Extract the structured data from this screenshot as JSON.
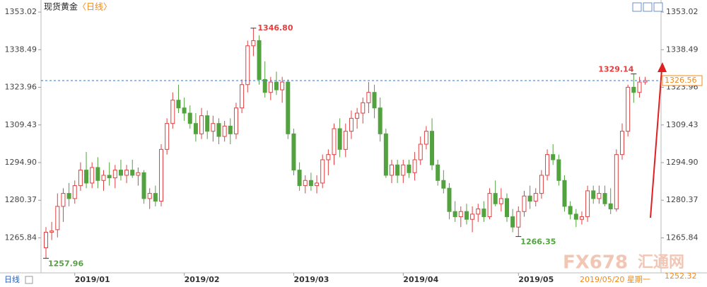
{
  "chart_data": {
    "type": "candlestick",
    "title": "现货黄金",
    "subtitle": "〈日线〉",
    "period_selector": "日线",
    "cursor_date": "2019/05/20 星期一",
    "cursor_price": {
      "value": 1252.32,
      "label": "1252.32"
    },
    "watermark": "FX678",
    "watermark_cn": "汇通网",
    "up_color": "#e04040",
    "down_color": "#52a23f",
    "categories": [
      null,
      null,
      null,
      null,
      null,
      "2019/01",
      null,
      null,
      null,
      null,
      null,
      null,
      null,
      null,
      null,
      null,
      null,
      null,
      null,
      null,
      null,
      null,
      null,
      null,
      "2019/02",
      null,
      null,
      null,
      null,
      null,
      null,
      null,
      null,
      null,
      null,
      null,
      null,
      null,
      null,
      null,
      null,
      null,
      null,
      "2019/03",
      null,
      null,
      null,
      null,
      null,
      null,
      null,
      null,
      null,
      null,
      null,
      null,
      null,
      null,
      null,
      null,
      null,
      null,
      "2019/04",
      null,
      null,
      null,
      null,
      null,
      null,
      null,
      null,
      null,
      null,
      null,
      null,
      null,
      null,
      null,
      null,
      null,
      null,
      null,
      "2019/05",
      null,
      null,
      null,
      null,
      null,
      null,
      null,
      null,
      null,
      null,
      null,
      null,
      null,
      null,
      null,
      null,
      null,
      null,
      null,
      null,
      null,
      null
    ],
    "open": [
      1262,
      1268,
      1269,
      1278,
      1283,
      1281,
      1286,
      1292,
      1287,
      1293,
      1288,
      1290,
      1289,
      1292,
      1290,
      1292,
      1290,
      1291,
      1281,
      1283,
      1280,
      1300,
      1310,
      1319,
      1316,
      1314,
      1310,
      1306,
      1313,
      1307,
      1310,
      1305,
      1309,
      1306,
      1316,
      1325,
      1340,
      1342,
      1327,
      1322,
      1326,
      1323,
      1326,
      1306,
      1292,
      1286,
      1288,
      1286,
      1287,
      1296,
      1298,
      1308,
      1300,
      1307,
      1312,
      1314,
      1318,
      1322,
      1316,
      1306,
      1290,
      1294,
      1290,
      1294,
      1291,
      1296,
      1302,
      1307,
      1294,
      1288,
      1285,
      1276,
      1274,
      1276,
      1273,
      1275,
      1277,
      1274,
      1283,
      1279,
      1281,
      1274,
      1270,
      1276,
      1282,
      1280,
      1283,
      1290,
      1298,
      1296,
      1288,
      1278,
      1275,
      1273,
      1274,
      1284,
      1281,
      1283,
      1279,
      1277,
      1298,
      1307,
      1324,
      1322,
      1326
    ],
    "high": [
      1270,
      1272,
      1283,
      1285,
      1287,
      1288,
      1295,
      1299,
      1295,
      1297,
      1292,
      1295,
      1294,
      1296,
      1294,
      1296,
      1293,
      1292,
      1285,
      1286,
      1302,
      1312,
      1322,
      1325,
      1320,
      1317,
      1314,
      1316,
      1315,
      1313,
      1312,
      1311,
      1312,
      1318,
      1327,
      1342,
      1346.8,
      1344,
      1334,
      1328,
      1330,
      1328,
      1327,
      1308,
      1295,
      1290,
      1291,
      1290,
      1298,
      1300,
      1310,
      1312,
      1310,
      1315,
      1316,
      1320,
      1326,
      1325,
      1320,
      1308,
      1296,
      1296,
      1296,
      1296,
      1299,
      1305,
      1309,
      1312,
      1296,
      1292,
      1287,
      1280,
      1278,
      1279,
      1278,
      1279,
      1280,
      1285,
      1288,
      1285,
      1283,
      1277,
      1278,
      1284,
      1286,
      1285,
      1292,
      1300,
      1302,
      1298,
      1290,
      1280,
      1277,
      1276,
      1286,
      1286,
      1286,
      1286,
      1285,
      1300,
      1310,
      1325,
      1329.14,
      1328,
      1328
    ],
    "low": [
      1257.96,
      1265,
      1266,
      1272,
      1278,
      1279,
      1284,
      1285,
      1285,
      1285,
      1284,
      1286,
      1285,
      1288,
      1287,
      1289,
      1286,
      1279,
      1277,
      1278,
      1278,
      1298,
      1308,
      1314,
      1311,
      1308,
      1303,
      1304,
      1304,
      1303,
      1302,
      1303,
      1302,
      1304,
      1314,
      1322,
      1336,
      1325,
      1320,
      1319,
      1321,
      1318,
      1304,
      1290,
      1284,
      1283,
      1284,
      1283,
      1285,
      1290,
      1294,
      1297,
      1297,
      1304,
      1308,
      1310,
      1314,
      1312,
      1303,
      1289,
      1287,
      1287,
      1287,
      1289,
      1288,
      1294,
      1300,
      1292,
      1286,
      1283,
      1273,
      1272,
      1270,
      1271,
      1268,
      1272,
      1272,
      1273,
      1278,
      1276,
      1272,
      1268,
      1266.35,
      1274,
      1277,
      1278,
      1281,
      1288,
      1294,
      1286,
      1276,
      1273,
      1270,
      1271,
      1272,
      1279,
      1279,
      1278,
      1275,
      1276,
      1296,
      1305,
      1318,
      1320,
      1325
    ],
    "close": [
      1268,
      1268.5,
      1278,
      1283,
      1281,
      1286,
      1292,
      1287,
      1293,
      1288,
      1290,
      1289,
      1292,
      1290,
      1292,
      1290,
      1291,
      1281,
      1283,
      1280,
      1300,
      1310,
      1319,
      1316,
      1314,
      1310,
      1306,
      1313,
      1307,
      1310,
      1305,
      1309,
      1306,
      1316,
      1325,
      1340,
      1342,
      1327,
      1322,
      1326,
      1323,
      1326,
      1306,
      1292,
      1286,
      1288,
      1286,
      1287,
      1296,
      1298,
      1308,
      1300,
      1307,
      1312,
      1314,
      1318,
      1322,
      1316,
      1306,
      1290,
      1294,
      1290,
      1294,
      1291,
      1296,
      1302,
      1307,
      1294,
      1288,
      1285,
      1276,
      1274,
      1276,
      1273,
      1275,
      1277,
      1274,
      1283,
      1279,
      1281,
      1274,
      1270,
      1276,
      1282,
      1280,
      1283,
      1290,
      1298,
      1296,
      1288,
      1278,
      1275,
      1273,
      1274,
      1284,
      1281,
      1283,
      1279,
      1277,
      1298,
      1307,
      1324,
      1322,
      1326,
      1326.56
    ],
    "high_labels": [
      null,
      null,
      null,
      null,
      null,
      null,
      null,
      null,
      null,
      null,
      null,
      null,
      null,
      null,
      null,
      null,
      null,
      null,
      null,
      null,
      null,
      null,
      null,
      null,
      null,
      null,
      null,
      null,
      null,
      null,
      null,
      null,
      null,
      null,
      null,
      null,
      "1346.80",
      null,
      null,
      null,
      null,
      null,
      null,
      null,
      null,
      null,
      null,
      null,
      null,
      null,
      null,
      null,
      null,
      null,
      null,
      null,
      null,
      null,
      null,
      null,
      null,
      null,
      null,
      null,
      null,
      null,
      null,
      null,
      null,
      null,
      null,
      null,
      null,
      null,
      null,
      null,
      null,
      null,
      null,
      null,
      null,
      null,
      null,
      null,
      null,
      null,
      null,
      null,
      null,
      null,
      null,
      null,
      null,
      null,
      null,
      null,
      null,
      null,
      null,
      null,
      null,
      null,
      "1329.14",
      null,
      null
    ],
    "low_labels": [
      "1257.96",
      null,
      null,
      null,
      null,
      null,
      null,
      null,
      null,
      null,
      null,
      null,
      null,
      null,
      null,
      null,
      null,
      null,
      null,
      null,
      null,
      null,
      null,
      null,
      null,
      null,
      null,
      null,
      null,
      null,
      null,
      null,
      null,
      null,
      null,
      null,
      null,
      null,
      null,
      null,
      null,
      null,
      null,
      null,
      null,
      null,
      null,
      null,
      null,
      null,
      null,
      null,
      null,
      null,
      null,
      null,
      null,
      null,
      null,
      null,
      null,
      null,
      null,
      null,
      null,
      null,
      null,
      null,
      null,
      null,
      null,
      null,
      null,
      null,
      null,
      null,
      null,
      null,
      null,
      null,
      null,
      null,
      "1266.35",
      null,
      null,
      null,
      null,
      null,
      null,
      null,
      null,
      null,
      null,
      null,
      null,
      null,
      null,
      null,
      null,
      null,
      null,
      null,
      null,
      null,
      null
    ],
    "ylim": [
      1252.32,
      1354.95
    ],
    "yticks": [
      1265.84,
      1280.37,
      {
        "value": 1294.9,
        "label": "1294.90"
      },
      1309.43,
      1323.96,
      1338.49,
      1353.02
    ]
  }
}
